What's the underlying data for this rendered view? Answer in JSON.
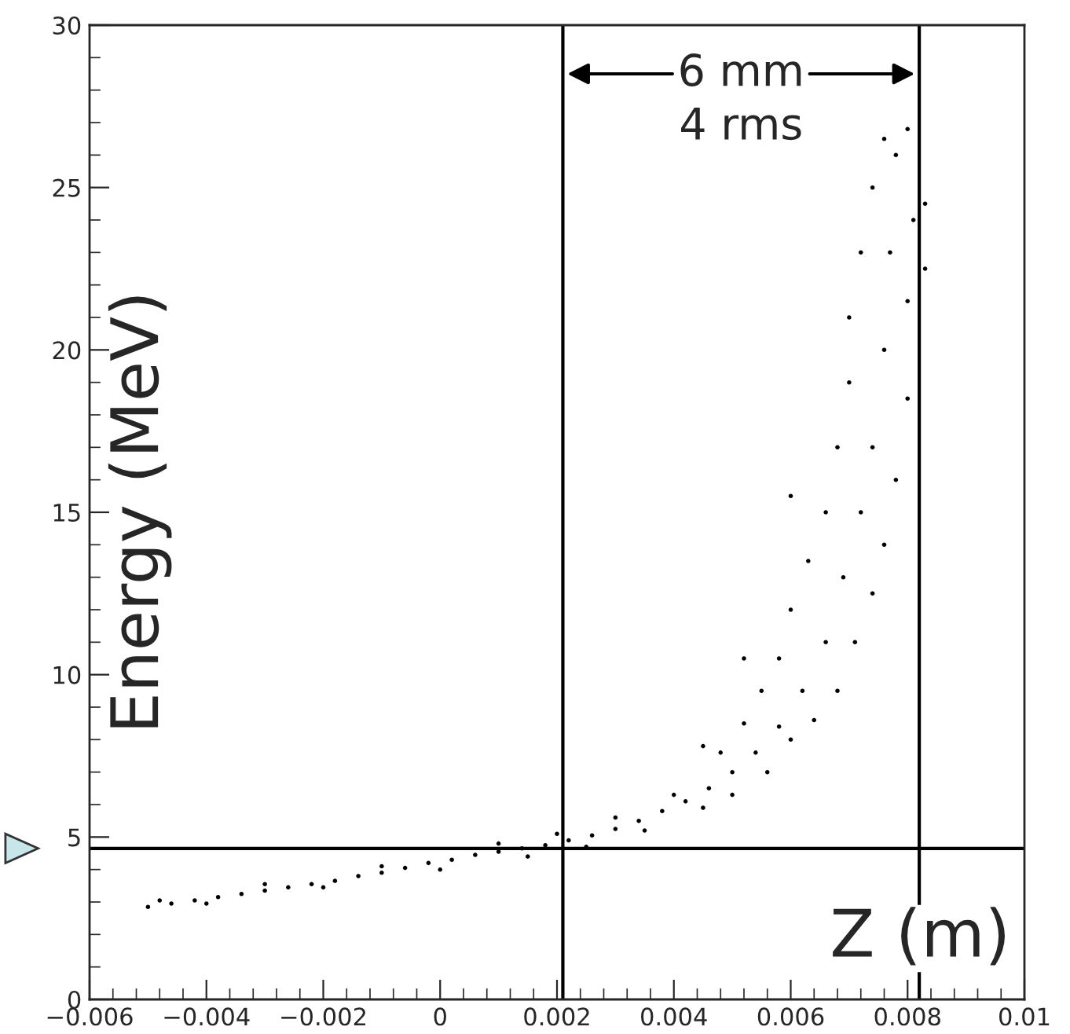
{
  "chart_data": {
    "type": "scatter",
    "xlabel": "Z (m)",
    "ylabel": "Energy (MeV)",
    "annotations": [
      "6 mm",
      "4 rms"
    ],
    "xlim": [
      -0.006,
      0.01
    ],
    "ylim": [
      0,
      30
    ],
    "xticks": [
      {
        "value": -0.006,
        "label": "−0.006"
      },
      {
        "value": -0.004,
        "label": "−0.004"
      },
      {
        "value": -0.002,
        "label": "−0.002"
      },
      0,
      0.002,
      0.004,
      0.006,
      0.008,
      0.01
    ],
    "yticks": [
      0,
      5,
      10,
      15,
      20,
      25,
      30
    ],
    "ref_lines": [
      {
        "axis": "y",
        "value": 4.65,
        "color": "#000000"
      },
      {
        "axis": "x",
        "value": 0.0021,
        "color": "#000000"
      },
      {
        "axis": "x",
        "value": 0.0082,
        "color": "#000000"
      }
    ],
    "grid": false,
    "legend": false,
    "marker": "circle",
    "series": [
      {
        "color": "#000000",
        "x": [
          -0.005,
          -0.0046,
          -0.0042,
          -0.0038,
          -0.0034,
          -0.003,
          -0.0026,
          -0.0022,
          -0.0018,
          -0.0014,
          -0.001,
          -0.0006,
          -0.0002,
          0.0002,
          0.0006,
          0.001,
          0.0014,
          0.0018,
          0.0022,
          0.0026,
          0.003,
          0.0034,
          0.0038,
          0.0042,
          0.0046,
          0.005,
          0.0054,
          0.0058,
          0.0062,
          0.0066,
          0.0069,
          0.0072,
          0.0074,
          0.0076,
          0.0077,
          0.0078,
          -0.0048,
          -0.004,
          -0.003,
          -0.002,
          -0.001,
          0,
          0.001,
          0.0015,
          0.002,
          0.0025,
          0.003,
          0.0035,
          0.004,
          0.0045,
          0.0048,
          0.005,
          0.0052,
          0.0056,
          0.0055,
          0.006,
          0.0058,
          0.0064,
          0.006,
          0.0068,
          0.0063,
          0.0071,
          0.0066,
          0.0074,
          0.0068,
          0.0076,
          0.007,
          0.0078,
          0.007,
          0.008,
          0.0072,
          0.008,
          0.0074,
          0.0081,
          0.0076,
          0.008,
          0.0083,
          0.0083,
          0.006,
          0.0052,
          0.0045
        ],
        "values": [
          2.85,
          2.95,
          3.05,
          3.15,
          3.25,
          3.35,
          3.45,
          3.55,
          3.65,
          3.8,
          3.9,
          4.05,
          4.2,
          4.3,
          4.45,
          4.55,
          4.65,
          4.75,
          4.9,
          5.05,
          5.25,
          5.5,
          5.8,
          6.1,
          6.5,
          7.0,
          7.6,
          8.4,
          9.5,
          11,
          13,
          15,
          17,
          20,
          23,
          26,
          3.05,
          2.95,
          3.55,
          3.45,
          4.1,
          4.0,
          4.8,
          4.4,
          5.1,
          4.7,
          5.6,
          5.2,
          6.3,
          5.9,
          7.6,
          6.3,
          8.5,
          7.0,
          9.5,
          8.0,
          10.5,
          8.6,
          12,
          9.5,
          13.5,
          11,
          15,
          12.5,
          17,
          14,
          19,
          16,
          21,
          18.5,
          23,
          21.5,
          25,
          24,
          26.5,
          26.8,
          24.5,
          22.5,
          15.5,
          10.5,
          7.8
        ]
      }
    ]
  }
}
